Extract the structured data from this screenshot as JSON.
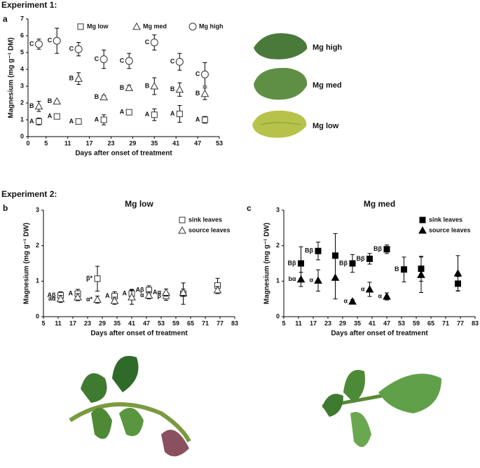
{
  "experiment_labels": [
    "Experiment 1:",
    "Experiment 2:"
  ],
  "panel_labels": [
    "a",
    "b",
    "c"
  ],
  "leaf_labels": [
    "Mg high",
    "Mg med",
    "Mg low"
  ],
  "chart_data": [
    {
      "type": "scatter",
      "xlabel": "Days after onset of treatment",
      "ylabel": "Magnesium (mg g⁻¹ DM)",
      "xlim": [
        0,
        53
      ],
      "xticks": [
        0,
        5,
        11,
        17,
        23,
        29,
        35,
        41,
        47,
        53
      ],
      "ylim": [
        0,
        7
      ],
      "yticks": [
        0,
        1,
        2,
        3,
        4,
        5,
        6,
        7
      ],
      "legend": "top",
      "series": [
        {
          "name": "Mg low",
          "marker": "square-open",
          "color": "#333333",
          "x": [
            3,
            8,
            14,
            21,
            28,
            35,
            42,
            49
          ],
          "values": [
            0.9,
            1.2,
            0.9,
            1.0,
            1.45,
            1.3,
            1.35,
            1.0
          ],
          "errors": [
            0.2,
            0.15,
            0.15,
            0.3,
            0.1,
            0.35,
            0.5,
            0.2
          ],
          "letters": [
            "A",
            "A",
            "A",
            "A",
            "A",
            "A",
            "A",
            "A"
          ]
        },
        {
          "name": "Mg med",
          "marker": "triangle-open",
          "color": "#333333",
          "x": [
            3,
            8,
            14,
            21,
            28,
            35,
            42,
            49
          ],
          "values": [
            1.8,
            2.1,
            3.45,
            2.35,
            2.9,
            3.0,
            2.8,
            2.55
          ],
          "errors": [
            0.3,
            0.05,
            0.35,
            0.1,
            0.15,
            0.5,
            0.4,
            0.35
          ],
          "letters": [
            "B",
            "B",
            "B",
            "B",
            "B",
            "B",
            "B",
            "B"
          ]
        },
        {
          "name": "Mg high",
          "marker": "circle-open",
          "color": "#333333",
          "x": [
            3,
            8,
            14,
            21,
            28,
            35,
            42,
            49
          ],
          "values": [
            5.5,
            5.7,
            5.2,
            4.6,
            4.5,
            5.6,
            4.45,
            3.7
          ],
          "errors": [
            0.3,
            0.75,
            0.4,
            0.55,
            0.45,
            0.45,
            0.5,
            0.7
          ],
          "letters": [
            "C",
            "C",
            "C",
            "C",
            "C",
            "C",
            "C",
            "C"
          ]
        }
      ]
    },
    {
      "type": "scatter",
      "title": "Mg low",
      "xlabel": "Days after onset of treatment",
      "ylabel": "Magnesium (mg g⁻¹ DW)",
      "xlim": [
        5,
        83
      ],
      "xticks": [
        5,
        11,
        17,
        23,
        29,
        35,
        41,
        47,
        53,
        59,
        65,
        71,
        77,
        83
      ],
      "ylim": [
        0,
        3
      ],
      "yticks": [
        0,
        1,
        2,
        3
      ],
      "legend": "upper right",
      "series": [
        {
          "name": "sink leaves",
          "marker": "square-open",
          "color": "#333333",
          "x": [
            12,
            19,
            27,
            34,
            41,
            48,
            55,
            62,
            76
          ],
          "values": [
            0.6,
            0.65,
            1.07,
            0.58,
            0.65,
            0.75,
            0.58,
            0.65,
            0.88
          ],
          "errors": [
            0.1,
            0.12,
            0.35,
            0.12,
            0.12,
            0.12,
            0.12,
            0.3,
            0.2
          ],
          "letters": [
            "Aβ",
            "A",
            "β*",
            "A",
            "A",
            "Aβ",
            "β",
            null,
            null
          ]
        },
        {
          "name": "source leaves",
          "marker": "triangle-open",
          "color": "#333333",
          "x": [
            12,
            19,
            27,
            34,
            41,
            48,
            55,
            62,
            76
          ],
          "values": [
            0.5,
            0.55,
            0.48,
            0.45,
            0.55,
            0.6,
            0.68,
            0.68,
            0.75
          ],
          "errors": [
            0.1,
            0.1,
            0.1,
            0.1,
            0.2,
            0.1,
            0.1,
            0.1,
            0.1
          ],
          "letters": [
            "aα",
            null,
            "α*",
            null,
            null,
            "α",
            "Aα",
            null,
            null
          ]
        }
      ]
    },
    {
      "type": "scatter",
      "title": "Mg med",
      "xlabel": "Days after onset of treatment",
      "ylabel": "Magnesium (mg g⁻¹ DW)",
      "xlim": [
        5,
        83
      ],
      "xticks": [
        5,
        11,
        17,
        23,
        29,
        35,
        41,
        47,
        53,
        59,
        65,
        71,
        77,
        83
      ],
      "ylim": [
        0,
        3
      ],
      "yticks": [
        0,
        1,
        2,
        3
      ],
      "legend": "upper right",
      "series": [
        {
          "name": "sink leaves",
          "marker": "square",
          "color": "#000000",
          "x": [
            12,
            19,
            26,
            33,
            40,
            47,
            54,
            61,
            76
          ],
          "values": [
            1.5,
            1.85,
            1.72,
            1.5,
            1.63,
            1.9,
            1.33,
            1.35,
            0.93
          ],
          "errors": [
            0.47,
            0.25,
            0.62,
            0.25,
            0.15,
            0.12,
            0.35,
            0.35,
            0.2
          ],
          "letters": [
            "Bβ",
            "Bβ",
            null,
            "Bβ",
            "Bβ",
            "Bβ",
            "B",
            null,
            null
          ]
        },
        {
          "name": "source leaves",
          "marker": "triangle",
          "color": "#000000",
          "x": [
            12,
            19,
            26,
            33,
            40,
            47,
            61,
            76
          ],
          "values": [
            1.05,
            1.02,
            1.1,
            0.43,
            0.77,
            0.57,
            1.18,
            1.22
          ],
          "errors": [
            0.2,
            0.3,
            0.6,
            0.05,
            0.2,
            0.1,
            0.5,
            0.5
          ],
          "letters": [
            "bα",
            "α",
            null,
            "α",
            "α",
            "α",
            null,
            null
          ]
        }
      ]
    }
  ]
}
